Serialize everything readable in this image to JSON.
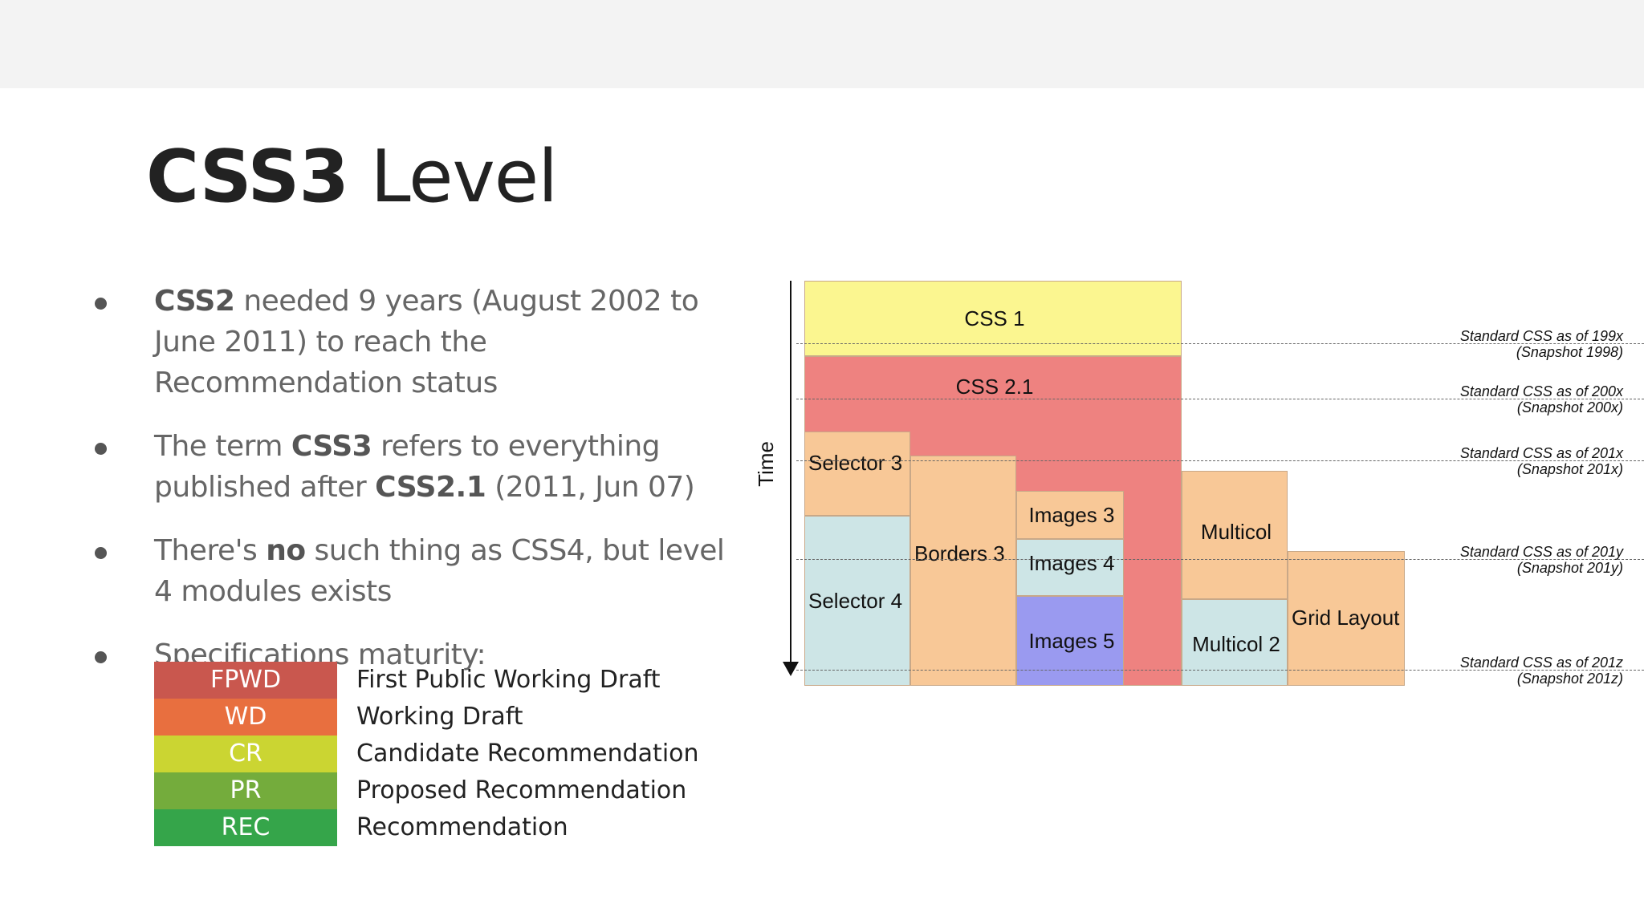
{
  "slide": {
    "title_bold": "CSS3",
    "title_rest": " Level",
    "bullets": [
      {
        "parts": [
          {
            "b": "CSS2"
          },
          {
            "t": " needed 9 years (August 2002 to June 2011) to reach the Recommendation status"
          }
        ]
      },
      {
        "parts": [
          {
            "t": "The term "
          },
          {
            "b": "CSS3"
          },
          {
            "t": " refers to everything published after "
          },
          {
            "b": "CSS2.1"
          },
          {
            "t": " (2011, Jun 07)"
          }
        ]
      },
      {
        "parts": [
          {
            "t": "There's "
          },
          {
            "b": "no"
          },
          {
            "t": " such thing as CSS4, but level 4 modules exists"
          }
        ]
      },
      {
        "parts": [
          {
            "t": "Specifications maturity:"
          }
        ]
      }
    ],
    "maturity": [
      {
        "code": "FPWD",
        "label": "First Public Working Draft",
        "color": "#c9574e"
      },
      {
        "code": "WD",
        "label": "Working Draft",
        "color": "#e86f3f"
      },
      {
        "code": "CR",
        "label": "Candidate Recommendation",
        "color": "#cbd532"
      },
      {
        "code": "PR",
        "label": "Proposed Recommendation",
        "color": "#74ac3c"
      },
      {
        "code": "REC",
        "label": "Recommendation",
        "color": "#35a54a"
      }
    ]
  },
  "diagram": {
    "axis_label": "Time",
    "blocks": {
      "css1": "CSS 1",
      "css21": "CSS 2.1",
      "selector3": "Selector 3",
      "selector4": "Selector 4",
      "borders3": "Borders 3",
      "images3": "Images 3",
      "images4": "Images 4",
      "images5": "Images 5",
      "multicol": "Multicol",
      "multicol2": "Multicol 2",
      "grid": "Grid Layout"
    },
    "snapshots": [
      {
        "line1": "Standard CSS as of 199x",
        "line2": "(Snapshot 1998)"
      },
      {
        "line1": "Standard CSS as of 200x",
        "line2": "(Snapshot 200x)"
      },
      {
        "line1": "Standard CSS as of 201x",
        "line2": "(Snapshot 201x)"
      },
      {
        "line1": "Standard CSS as of 201y",
        "line2": "(Snapshot 201y)"
      },
      {
        "line1": "Standard CSS as of 201z",
        "line2": "(Snapshot 201z)"
      }
    ],
    "colors": {
      "css1": "#fbf690",
      "css21": "#ee8280",
      "orange": "#f8c897",
      "light_blue": "#cde5e6",
      "purple": "#9a9af0"
    }
  }
}
